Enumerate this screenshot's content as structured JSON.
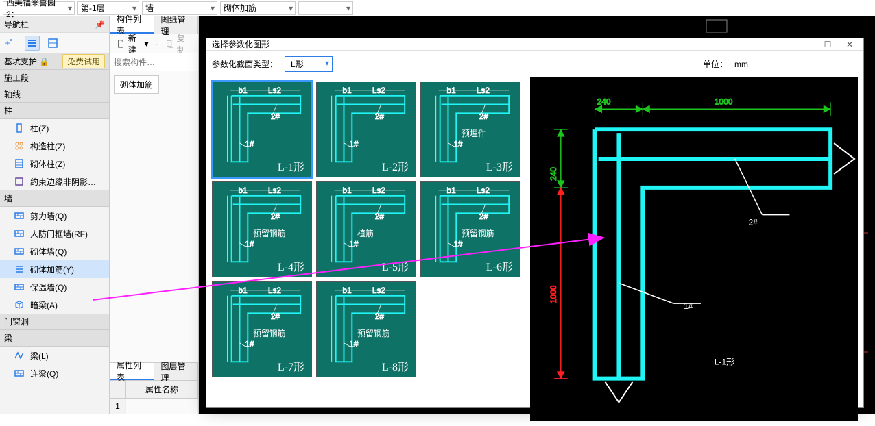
{
  "toolbar": {
    "dropdowns": [
      "西美福来喜园2：",
      "第-1层",
      "墙",
      "砌体加筋",
      ""
    ]
  },
  "nav": {
    "title": "导航栏",
    "sections": [
      {
        "label": "基坑支护",
        "lock": true,
        "trial": "免费试用"
      },
      {
        "label": "施工段"
      },
      {
        "label": "轴线"
      },
      {
        "label": "柱",
        "items": [
          {
            "label": "柱(Z)"
          },
          {
            "label": "构造柱(Z)"
          },
          {
            "label": "砌体柱(Z)"
          },
          {
            "label": "约束边缘非阴影…"
          }
        ]
      },
      {
        "label": "墙",
        "items": [
          {
            "label": "剪力墙(Q)"
          },
          {
            "label": "人防门框墙(RF)"
          },
          {
            "label": "砌体墙(Q)"
          },
          {
            "label": "砌体加筋(Y)",
            "selected": true
          },
          {
            "label": "保温墙(Q)"
          },
          {
            "label": "暗梁(A)"
          }
        ]
      },
      {
        "label": "门窗洞"
      },
      {
        "label": "梁",
        "items": [
          {
            "label": "梁(L)"
          },
          {
            "label": "连梁(Q)"
          }
        ]
      }
    ]
  },
  "midPanel": {
    "tabs": [
      "构件列表",
      "图纸管理"
    ],
    "activeTab": 0,
    "newBtn": "新建",
    "copyBtn": "复制",
    "searchPlaceholder": "搜索构件…",
    "listItems": [
      "砌体加筋"
    ]
  },
  "propPanel": {
    "tabs": [
      "属性列表",
      "图层管理"
    ],
    "activeTab": 0,
    "columns": [
      "",
      "属性名称"
    ],
    "rows": [
      {
        "num": "1",
        "name": ""
      }
    ]
  },
  "dialog": {
    "title": "选择参数化图形",
    "paramLabel": "参数化截面类型：",
    "paramValue": "L形",
    "unitLabel": "单位：",
    "unitValue": "mm",
    "shapes": [
      {
        "label": "L-1形",
        "selected": true
      },
      {
        "label": "L-2形"
      },
      {
        "label": "预埋件\nL-3形",
        "desc": "预埋件"
      },
      {
        "label": "预留钢筋\nL-4形",
        "desc": "预留钢筋"
      },
      {
        "label": "植筋\nL-5形",
        "desc": "植筋"
      },
      {
        "label": "预留钢筋\nL-6形",
        "desc": "预留钢筋"
      },
      {
        "label": "预留钢筋\nL-7形",
        "desc": "预留钢筋"
      },
      {
        "label": "预留钢筋\nL-8形",
        "desc": "预留钢筋"
      }
    ],
    "preview": {
      "dim_b1": "240",
      "dim_Ls2": "1000",
      "dim_b2": "240",
      "dim_Ls1": "1000",
      "label1": "1#",
      "label2": "2#",
      "shapeLabel": "L-1形",
      "colors": {
        "dim_green": "#1ec41e",
        "dim_red": "#ff2020",
        "shape_cyan": "#20f4f4",
        "bg": "#000000",
        "white": "#ffffff"
      }
    }
  },
  "arrow": {
    "color": "#ff20ff"
  }
}
